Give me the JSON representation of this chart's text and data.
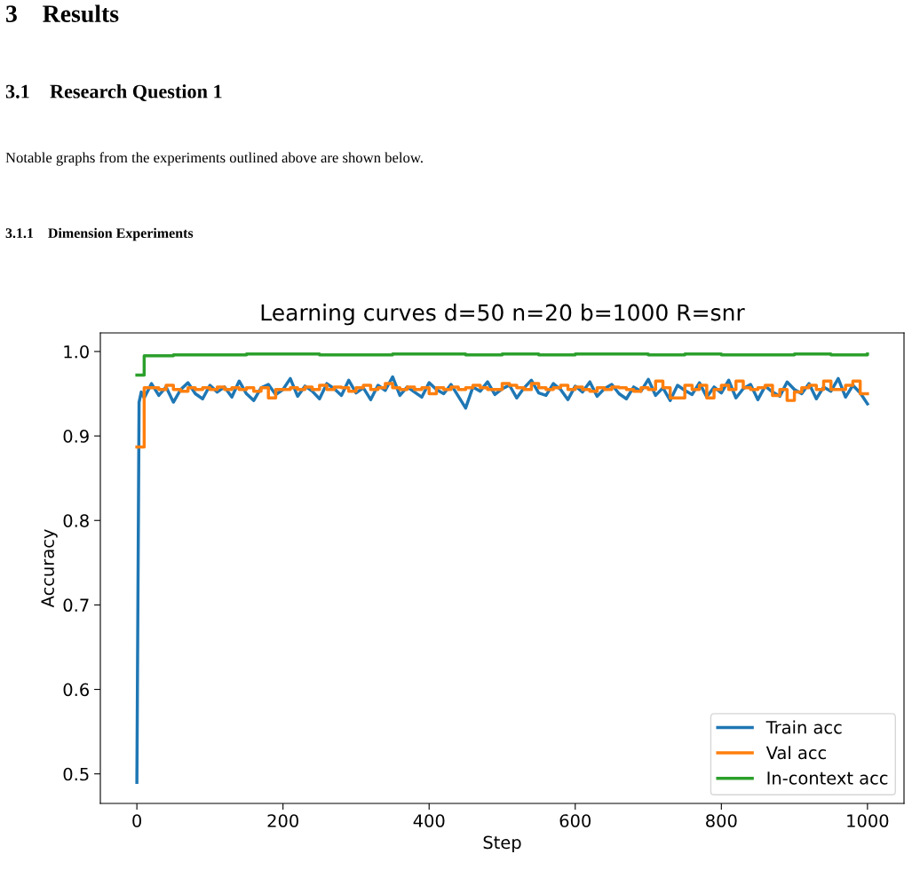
{
  "chart_data": {
    "type": "line",
    "title": "Learning curves d=50 n=20 b=1000 R=snr",
    "xlabel": "Step",
    "ylabel": "Accuracy",
    "annotations": [
      "3    Results",
      "3.1    Research Question 1",
      "Notable graphs from the experiments outlined above are shown below.",
      "3.1.1    Dimension Experiments"
    ],
    "xlim": [
      -50,
      1050
    ],
    "xticks": [
      0,
      200,
      400,
      600,
      800,
      1000
    ],
    "ylim": [
      0.465,
      1.022
    ],
    "yticks": [
      0.5,
      0.6,
      0.7,
      0.8,
      0.9,
      {
        "value": 1.0,
        "label": "1.0"
      }
    ],
    "grid": false,
    "legend": "bottom right",
    "series": [
      {
        "name": "Train acc",
        "color": "#1f77b4",
        "x": [
          0,
          3,
          6,
          10,
          20,
          30,
          40,
          50,
          60,
          70,
          80,
          90,
          100,
          110,
          120,
          130,
          140,
          150,
          160,
          170,
          180,
          190,
          200,
          210,
          220,
          230,
          240,
          250,
          260,
          270,
          280,
          290,
          300,
          310,
          320,
          330,
          340,
          350,
          360,
          370,
          380,
          390,
          400,
          410,
          420,
          430,
          440,
          450,
          460,
          470,
          480,
          490,
          500,
          510,
          520,
          530,
          540,
          550,
          560,
          570,
          580,
          590,
          600,
          610,
          620,
          630,
          640,
          650,
          660,
          670,
          680,
          690,
          700,
          710,
          720,
          730,
          740,
          750,
          760,
          770,
          780,
          790,
          800,
          810,
          820,
          830,
          840,
          850,
          860,
          870,
          880,
          890,
          900,
          910,
          920,
          930,
          940,
          950,
          960,
          970,
          980,
          990,
          1000
        ],
        "values": [
          0.49,
          0.94,
          0.952,
          0.945,
          0.962,
          0.948,
          0.958,
          0.94,
          0.955,
          0.963,
          0.95,
          0.944,
          0.96,
          0.952,
          0.958,
          0.946,
          0.965,
          0.95,
          0.942,
          0.957,
          0.961,
          0.949,
          0.955,
          0.968,
          0.947,
          0.959,
          0.953,
          0.944,
          0.962,
          0.956,
          0.948,
          0.966,
          0.951,
          0.957,
          0.943,
          0.96,
          0.954,
          0.97,
          0.948,
          0.958,
          0.952,
          0.946,
          0.963,
          0.955,
          0.95,
          0.961,
          0.947,
          0.933,
          0.958,
          0.953,
          0.964,
          0.949,
          0.956,
          0.96,
          0.945,
          0.957,
          0.966,
          0.951,
          0.948,
          0.962,
          0.955,
          0.943,
          0.959,
          0.952,
          0.964,
          0.947,
          0.956,
          0.961,
          0.95,
          0.944,
          0.958,
          0.953,
          0.967,
          0.948,
          0.957,
          0.942,
          0.96,
          0.954,
          0.949,
          0.963,
          0.946,
          0.958,
          0.951,
          0.966,
          0.945,
          0.956,
          0.961,
          0.943,
          0.959,
          0.952,
          0.947,
          0.964,
          0.955,
          0.95,
          0.962,
          0.944,
          0.958,
          0.953,
          0.968,
          0.946,
          0.96,
          0.951,
          0.938
        ]
      },
      {
        "name": "Val acc",
        "color": "#ff7f0e",
        "type": "step",
        "x": [
          0,
          10,
          20,
          30,
          40,
          50,
          60,
          70,
          80,
          90,
          100,
          110,
          120,
          130,
          140,
          150,
          160,
          170,
          180,
          190,
          200,
          210,
          220,
          230,
          240,
          250,
          260,
          270,
          280,
          290,
          300,
          310,
          320,
          330,
          340,
          350,
          360,
          370,
          380,
          390,
          400,
          410,
          420,
          430,
          440,
          450,
          460,
          470,
          480,
          490,
          500,
          510,
          520,
          530,
          540,
          550,
          560,
          570,
          580,
          590,
          600,
          610,
          620,
          630,
          640,
          650,
          660,
          670,
          680,
          690,
          700,
          710,
          720,
          730,
          740,
          750,
          760,
          770,
          780,
          790,
          800,
          810,
          820,
          830,
          840,
          850,
          860,
          870,
          880,
          890,
          900,
          910,
          920,
          930,
          940,
          950,
          960,
          970,
          980,
          990,
          1000
        ],
        "values": [
          0.887,
          0.957,
          0.957,
          0.955,
          0.96,
          0.955,
          0.953,
          0.957,
          0.955,
          0.957,
          0.955,
          0.958,
          0.955,
          0.957,
          0.955,
          0.957,
          0.953,
          0.957,
          0.945,
          0.955,
          0.955,
          0.957,
          0.955,
          0.958,
          0.955,
          0.96,
          0.955,
          0.958,
          0.957,
          0.953,
          0.957,
          0.96,
          0.955,
          0.957,
          0.962,
          0.957,
          0.955,
          0.958,
          0.955,
          0.957,
          0.95,
          0.957,
          0.955,
          0.958,
          0.955,
          0.957,
          0.96,
          0.957,
          0.955,
          0.955,
          0.962,
          0.96,
          0.957,
          0.955,
          0.962,
          0.957,
          0.955,
          0.957,
          0.96,
          0.955,
          0.958,
          0.955,
          0.953,
          0.957,
          0.955,
          0.958,
          0.957,
          0.955,
          0.953,
          0.957,
          0.955,
          0.965,
          0.957,
          0.945,
          0.945,
          0.96,
          0.955,
          0.96,
          0.945,
          0.955,
          0.96,
          0.955,
          0.965,
          0.957,
          0.955,
          0.957,
          0.96,
          0.948,
          0.955,
          0.942,
          0.952,
          0.957,
          0.96,
          0.955,
          0.965,
          0.955,
          0.955,
          0.96,
          0.965,
          0.95,
          0.95
        ]
      },
      {
        "name": "In-context acc",
        "color": "#2ca02c",
        "type": "step",
        "x": [
          0,
          10,
          50,
          100,
          150,
          200,
          250,
          300,
          350,
          400,
          450,
          500,
          550,
          600,
          650,
          700,
          750,
          800,
          850,
          900,
          950,
          1000
        ],
        "values": [
          0.972,
          0.995,
          0.996,
          0.996,
          0.997,
          0.997,
          0.996,
          0.996,
          0.997,
          0.997,
          0.996,
          0.997,
          0.996,
          0.997,
          0.997,
          0.996,
          0.997,
          0.996,
          0.996,
          0.997,
          0.996,
          0.997
        ]
      }
    ]
  }
}
